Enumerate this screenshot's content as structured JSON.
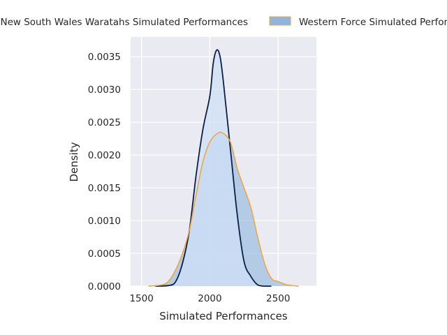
{
  "chart_data": {
    "type": "area",
    "title": "",
    "xlabel": "Simulated Performances",
    "ylabel": "Density",
    "xlim": [
      1420,
      2780
    ],
    "ylim": [
      0,
      0.0038
    ],
    "x_ticks": [
      "1500",
      "2000",
      "2500"
    ],
    "x_tick_values": [
      1500,
      2000,
      2500
    ],
    "y_ticks": [
      "0.0000",
      "0.0005",
      "0.0010",
      "0.0015",
      "0.0020",
      "0.0025",
      "0.0030",
      "0.0035"
    ],
    "y_tick_values": [
      0,
      0.0005,
      0.001,
      0.0015,
      0.002,
      0.0025,
      0.003,
      0.0035
    ],
    "grid": true,
    "legend_position": "top (above plot)",
    "plot_background": "#eaeaf2",
    "series": [
      {
        "name": "New South Wales Waratahs Simulated Performances",
        "line_color": "#0b1f48",
        "fill_color": "#cfe0f5",
        "x": [
          1600,
          1700,
          1750,
          1800,
          1850,
          1900,
          1950,
          2000,
          2025,
          2050,
          2075,
          2100,
          2150,
          2200,
          2250,
          2300,
          2350,
          2400,
          2450
        ],
        "y": [
          0.0,
          1e-05,
          7e-05,
          0.00035,
          0.00085,
          0.0017,
          0.0024,
          0.0029,
          0.0034,
          0.0036,
          0.0035,
          0.0031,
          0.0021,
          0.0011,
          0.00038,
          0.00015,
          2e-05,
          0.0,
          0.0
        ]
      },
      {
        "name": "Western Force Simulated Performances",
        "line_color": "#f0a43a",
        "fill_color": "#8fb5dd",
        "x": [
          1550,
          1650,
          1700,
          1750,
          1800,
          1850,
          1900,
          1950,
          2000,
          2050,
          2090,
          2150,
          2200,
          2250,
          2300,
          2350,
          2400,
          2450,
          2500,
          2550,
          2600,
          2650
        ],
        "y": [
          0.0,
          2e-05,
          8e-05,
          0.00025,
          0.0005,
          0.00085,
          0.0014,
          0.0019,
          0.0022,
          0.00232,
          0.00234,
          0.0022,
          0.0018,
          0.0015,
          0.0012,
          0.00075,
          0.00035,
          0.00012,
          7e-05,
          3e-05,
          1e-05,
          0.0
        ]
      }
    ]
  }
}
